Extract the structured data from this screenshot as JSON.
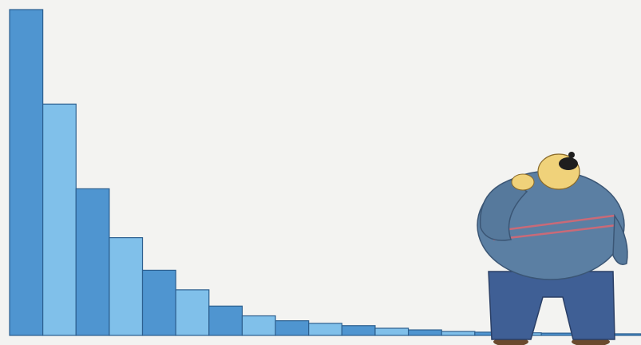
{
  "chart_data": {
    "type": "bar",
    "categories": [
      null,
      null,
      null,
      null,
      null,
      null,
      null,
      null,
      null,
      null,
      null,
      null,
      null,
      null,
      null,
      null,
      null,
      null,
      null
    ],
    "values": [
      100,
      71,
      45,
      30,
      20,
      14,
      9,
      6,
      4.5,
      3.7,
      3,
      2.2,
      1.7,
      1.2,
      1,
      0.8,
      0.7,
      0.6,
      0.5
    ],
    "colors": [
      "#4f95d0",
      "#80c0ea"
    ],
    "ylim": [
      0,
      100
    ]
  }
}
